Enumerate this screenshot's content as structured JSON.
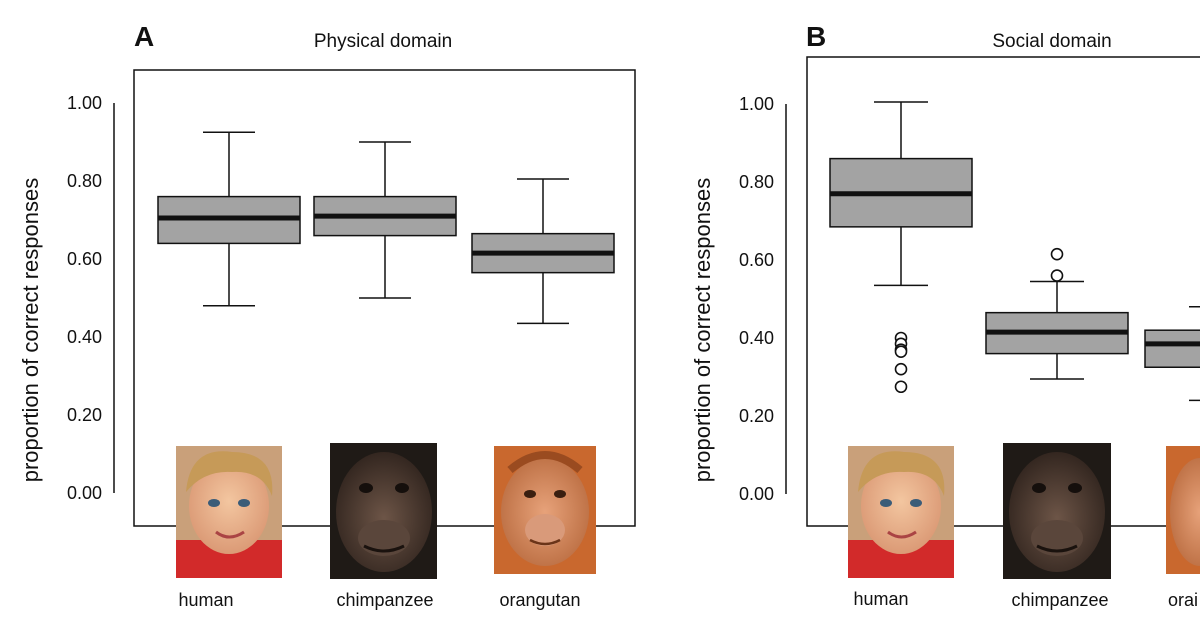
{
  "figure": {
    "panels": [
      {
        "letter": "A",
        "title": "Physical domain",
        "ylabel": "proportion of correct responses"
      },
      {
        "letter": "B",
        "title": "Social domain",
        "ylabel": "proportion of correct responses"
      }
    ]
  },
  "colors": {
    "box_fill": "#a3a3a3",
    "line": "#111111",
    "background": "#ffffff"
  },
  "chart_data": [
    {
      "type": "boxplot",
      "title": "Physical domain",
      "ylabel": "proportion of correct responses",
      "xlabel": "",
      "yticks": [
        "0.00",
        "0.20",
        "0.40",
        "0.60",
        "0.80",
        "1.00"
      ],
      "ylim": [
        -0.09,
        1.08
      ],
      "categories": [
        "human",
        "chimpanzee",
        "orangutan"
      ],
      "boxes": [
        {
          "category": "human",
          "whisker_low": 0.48,
          "q1": 0.64,
          "median": 0.705,
          "q3": 0.76,
          "whisker_high": 0.925,
          "outliers": []
        },
        {
          "category": "chimpanzee",
          "whisker_low": 0.5,
          "q1": 0.66,
          "median": 0.71,
          "q3": 0.76,
          "whisker_high": 0.9,
          "outliers": []
        },
        {
          "category": "orangutan",
          "whisker_low": 0.435,
          "q1": 0.565,
          "median": 0.615,
          "q3": 0.665,
          "whisker_high": 0.805,
          "outliers": []
        }
      ],
      "photos": [
        "human-face",
        "chimpanzee-face",
        "orangutan-face"
      ]
    },
    {
      "type": "boxplot",
      "title": "Social domain",
      "ylabel": "proportion of correct responses",
      "xlabel": "",
      "yticks": [
        "0.00",
        "0.20",
        "0.40",
        "0.60",
        "0.80",
        "1.00"
      ],
      "ylim": [
        -0.08,
        1.12
      ],
      "categories": [
        "human",
        "chimpanzee",
        "orangutan"
      ],
      "visible_category_labels": [
        "human",
        "chimpanzee",
        "orai"
      ],
      "boxes": [
        {
          "category": "human",
          "whisker_low": 0.535,
          "q1": 0.685,
          "median": 0.77,
          "q3": 0.86,
          "whisker_high": 1.005,
          "outliers": [
            0.4,
            0.385,
            0.37,
            0.365,
            0.32,
            0.275
          ]
        },
        {
          "category": "chimpanzee",
          "whisker_low": 0.295,
          "q1": 0.36,
          "median": 0.415,
          "q3": 0.465,
          "whisker_high": 0.545,
          "outliers": [
            0.56,
            0.615
          ]
        },
        {
          "category": "orangutan",
          "whisker_low": 0.24,
          "q1": 0.325,
          "median": 0.385,
          "q3": 0.42,
          "whisker_high": 0.48,
          "outliers": []
        }
      ],
      "photos": [
        "human-face",
        "chimpanzee-face",
        "orangutan-face"
      ]
    }
  ]
}
